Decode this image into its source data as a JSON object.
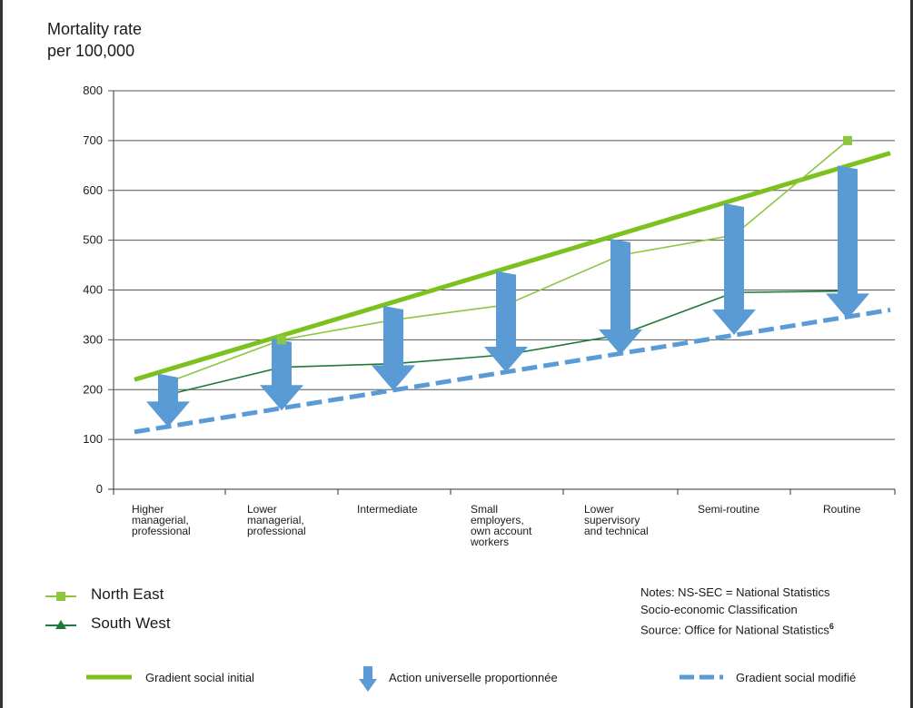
{
  "chart_data": {
    "type": "line",
    "ylabel": "Mortality rate\nper 100,000",
    "xlabel": "",
    "ylim": [
      0,
      800
    ],
    "yticks": [
      0,
      100,
      200,
      300,
      400,
      500,
      600,
      700,
      800
    ],
    "grid": "horizontal",
    "categories": [
      "Higher\nmanagerial,\nprofessional",
      "Lower\nmanagerial,\nprofessional",
      "Intermediate",
      "Small\nemployers,\nown account\nworkers",
      "Lower\nsupervisory\nand technical",
      "Semi-routine",
      "Routine"
    ],
    "series": [
      {
        "name": "North East",
        "values": [
          215,
          300,
          340,
          370,
          470,
          510,
          700
        ],
        "color": "#8dc63f",
        "marker": "square"
      },
      {
        "name": "South West",
        "values": [
          190,
          245,
          252,
          270,
          310,
          395,
          398
        ],
        "color": "#1f7a3a",
        "marker": "triangle"
      }
    ],
    "overlays": [
      {
        "name": "Gradient social initial",
        "from": 220,
        "to": 675,
        "color": "#7cc11f",
        "style": "solid-thick"
      },
      {
        "name": "Gradient social modifié",
        "from": 115,
        "to": 360,
        "color": "#5b9bd5",
        "style": "dashed-thick"
      }
    ],
    "arrows": {
      "name": "Action universelle proportionnée",
      "color": "#5b9bd5",
      "from_values": [
        232,
        303,
        368,
        438,
        503,
        574,
        650
      ],
      "to_values": [
        125,
        158,
        198,
        235,
        270,
        310,
        342
      ]
    }
  },
  "notes": {
    "line1": "Notes: NS-SEC = National Statistics",
    "line2": "Socio-economic Classification",
    "line3": "Source: Office for National Statistics",
    "sup": "6"
  },
  "legend": {
    "north_east": "North East",
    "south_west": "South West",
    "initial": "Gradient social initial",
    "action": "Action universelle proportionnée",
    "modified": "Gradient social modifié"
  }
}
